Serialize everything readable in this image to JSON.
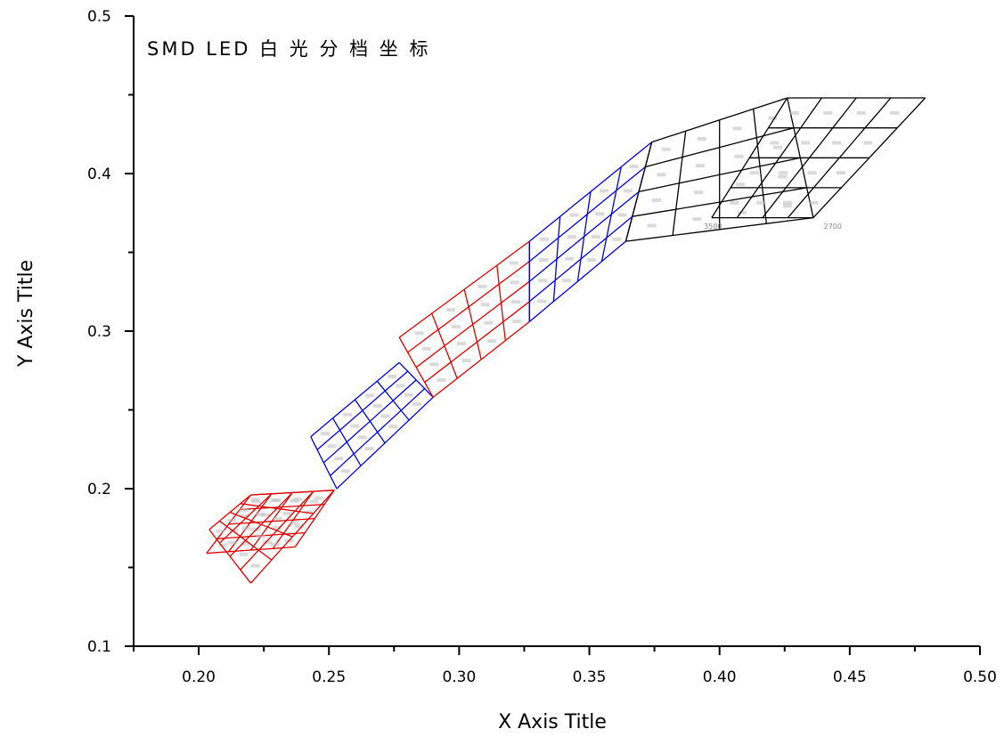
{
  "chart_data": {
    "type": "diagram-grid",
    "title": "SMD LED 白 光 分 档 坐 标",
    "xlabel": "X Axis Title",
    "ylabel": "Y Axis Title",
    "xlim": [
      0.175,
      0.5
    ],
    "ylim": [
      0.1,
      0.5
    ],
    "xticks": [
      "0.20",
      "0.25",
      "0.30",
      "0.35",
      "0.40",
      "0.45",
      "0.50"
    ],
    "yticks": [
      "0.1",
      "0.2",
      "0.3",
      "0.4",
      "0.5"
    ],
    "colors": {
      "red": "#e00000",
      "blue": "#0000e0",
      "black": "#000000",
      "axis": "#000000",
      "label": "#888888"
    },
    "regions": [
      {
        "color": "red",
        "corners": {
          "tl": [
            0.22,
            0.196
          ],
          "tr": [
            0.252,
            0.199
          ],
          "br": [
            0.237,
            0.163
          ],
          "bl": [
            0.203,
            0.159
          ]
        },
        "cols": 4,
        "rows": 4
      },
      {
        "color": "red",
        "corners": {
          "tl": [
            0.22,
            0.196
          ],
          "tr": [
            0.252,
            0.199
          ],
          "br": [
            0.22,
            0.14
          ],
          "bl": [
            0.204,
            0.174
          ]
        },
        "cols": 4,
        "rows": 4,
        "overlay": true
      },
      {
        "color": "blue",
        "corners": {
          "tl": [
            0.243,
            0.233
          ],
          "tr": [
            0.277,
            0.28
          ],
          "br": [
            0.29,
            0.258
          ],
          "bl": [
            0.253,
            0.2
          ]
        },
        "cols": 4,
        "rows": 4
      },
      {
        "color": "red",
        "corners": {
          "tl": [
            0.277,
            0.296
          ],
          "tr": [
            0.327,
            0.357
          ],
          "br": [
            0.327,
            0.306
          ],
          "bl": [
            0.29,
            0.258
          ]
        },
        "cols": 4,
        "rows": 4
      },
      {
        "color": "blue",
        "corners": {
          "tl": [
            0.327,
            0.357
          ],
          "tr": [
            0.374,
            0.42
          ],
          "br": [
            0.364,
            0.357
          ],
          "bl": [
            0.327,
            0.306
          ]
        },
        "cols": 4,
        "rows": 4
      },
      {
        "color": "black",
        "corners": {
          "tl": [
            0.374,
            0.42
          ],
          "tr": [
            0.426,
            0.448
          ],
          "br": [
            0.436,
            0.372
          ],
          "bl": [
            0.364,
            0.357
          ]
        },
        "cols": 4,
        "rows": 4,
        "curved": true
      },
      {
        "color": "black",
        "corners": {
          "tl": [
            0.426,
            0.448
          ],
          "tr": [
            0.479,
            0.448
          ],
          "br": [
            0.436,
            0.372
          ],
          "bl": [
            0.397,
            0.372
          ]
        },
        "cols": 4,
        "rows": 4
      }
    ],
    "annotations": [
      {
        "text": "3500",
        "x": 0.394,
        "y": 0.365
      },
      {
        "text": "2700",
        "x": 0.44,
        "y": 0.365
      }
    ]
  }
}
